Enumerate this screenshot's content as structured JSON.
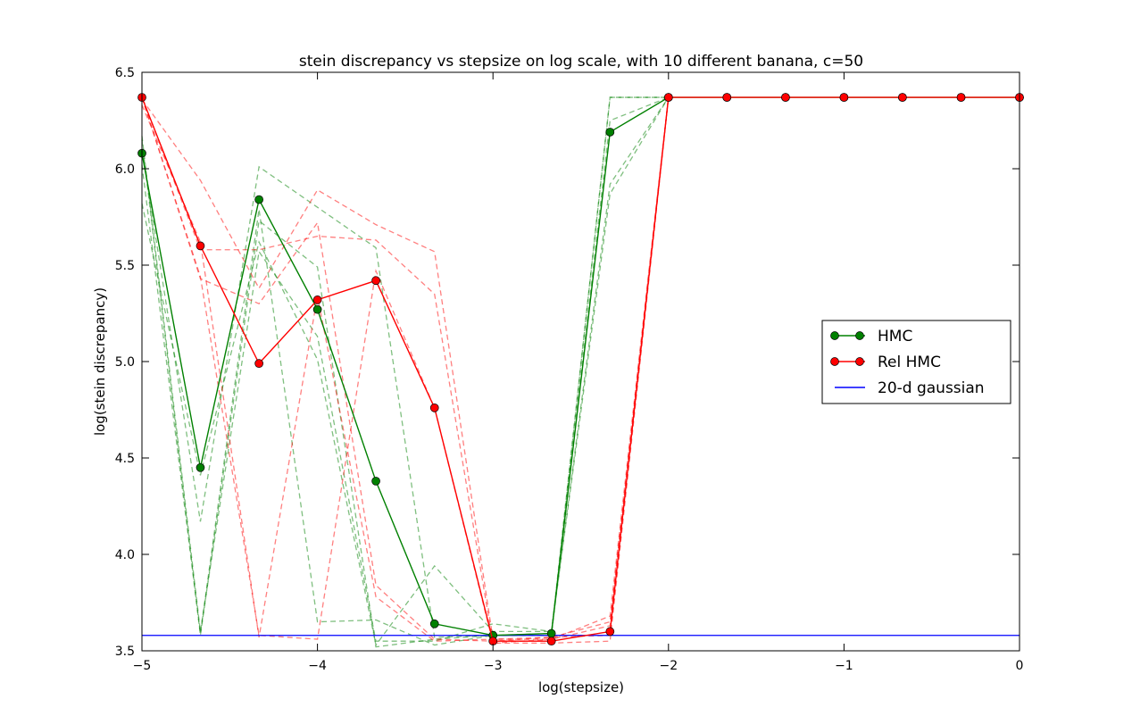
{
  "chart_data": {
    "type": "line",
    "title": "stein discrepancy vs stepsize on log scale, with 10 different banana, c=50",
    "xlabel": "log(stepsize)",
    "ylabel": "log(stein discrepancy)",
    "xlim": [
      -5,
      0
    ],
    "ylim": [
      3.5,
      6.5
    ],
    "xticks": [
      -5,
      -4,
      -3,
      -2,
      -1,
      0
    ],
    "xtick_labels": [
      "−5",
      "−4",
      "−3",
      "−2",
      "−1",
      "0"
    ],
    "yticks": [
      3.5,
      4.0,
      4.5,
      5.0,
      5.5,
      6.0,
      6.5
    ],
    "ytick_labels": [
      "3.5",
      "4.0",
      "4.5",
      "5.0",
      "5.5",
      "6.0",
      "6.5"
    ],
    "grid": false,
    "legend_position": "right",
    "x": [
      -5,
      -4.667,
      -4.333,
      -4,
      -3.667,
      -3.333,
      -3,
      -2.667,
      -2.333,
      -2,
      -1.667,
      -1.333,
      -1,
      -0.667,
      -0.333,
      0
    ],
    "series": [
      {
        "name": "HMC",
        "color": "#008000",
        "marker": "circle",
        "values": [
          6.08,
          4.45,
          5.84,
          5.27,
          4.38,
          3.64,
          3.58,
          3.59,
          6.19,
          6.37,
          6.37,
          6.37,
          6.37,
          6.37,
          6.37,
          6.37
        ]
      },
      {
        "name": "Rel HMC",
        "color": "#ff0000",
        "marker": "circle",
        "values": [
          6.37,
          5.6,
          4.99,
          5.32,
          5.42,
          4.76,
          3.55,
          3.55,
          3.6,
          6.37,
          6.37,
          6.37,
          6.37,
          6.37,
          6.37,
          6.37
        ]
      },
      {
        "name": "20-d gaussian",
        "color": "#0000ff",
        "marker": "none",
        "value": 3.58
      }
    ],
    "individual_runs": {
      "HMC": {
        "color": "#008000",
        "x": [
          -5,
          -4.667,
          -4.333,
          -4,
          -3.667,
          -3.333,
          -3,
          -2.667,
          -2.333,
          -2
        ],
        "runs": [
          [
            6.15,
            3.58,
            5.73,
            5.49,
            3.52,
            3.56,
            3.58,
            3.59,
            6.37,
            6.37
          ],
          [
            6.1,
            4.17,
            6.01,
            5.8,
            5.59,
            3.57,
            3.58,
            3.58,
            6.25,
            6.37
          ],
          [
            5.82,
            4.41,
            5.62,
            5.01,
            3.53,
            3.94,
            3.6,
            3.6,
            5.92,
            6.37
          ],
          [
            6.17,
            3.6,
            5.57,
            5.13,
            3.55,
            3.55,
            3.64,
            3.6,
            5.87,
            6.37
          ],
          [
            6.02,
            3.59,
            5.79,
            3.65,
            3.66,
            3.53,
            3.58,
            3.58,
            6.37,
            6.37
          ]
        ]
      },
      "Rel HMC": {
        "color": "#ff0000",
        "x": [
          -5,
          -4.667,
          -4.333,
          -4,
          -3.667,
          -3.333,
          -3,
          -2.667,
          -2.333,
          -2
        ],
        "runs": [
          [
            6.36,
            5.94,
            5.38,
            5.89,
            5.71,
            5.57,
            3.56,
            3.56,
            3.68,
            6.37
          ],
          [
            6.37,
            5.58,
            5.58,
            5.65,
            5.63,
            5.35,
            3.54,
            3.54,
            3.55,
            6.37
          ],
          [
            6.37,
            5.44,
            3.58,
            3.56,
            5.47,
            4.76,
            3.54,
            3.56,
            3.63,
            6.37
          ],
          [
            6.37,
            5.43,
            5.3,
            5.72,
            3.84,
            3.56,
            3.55,
            3.57,
            3.58,
            6.37
          ],
          [
            6.33,
            5.62,
            3.57,
            5.34,
            3.78,
            3.55,
            3.56,
            3.57,
            3.65,
            6.37
          ]
        ]
      }
    }
  }
}
